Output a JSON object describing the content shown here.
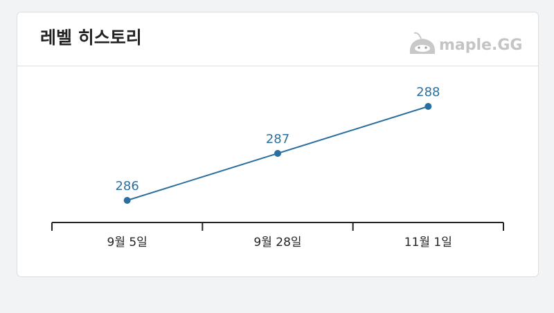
{
  "header": {
    "title": "레벨 히스토리",
    "logo": "maple.GG"
  },
  "chart_data": {
    "type": "line",
    "categories": [
      "9월 5일",
      "9월 28일",
      "11월 1일"
    ],
    "values": [
      286,
      287,
      288
    ],
    "color": "#2b6f9e"
  }
}
